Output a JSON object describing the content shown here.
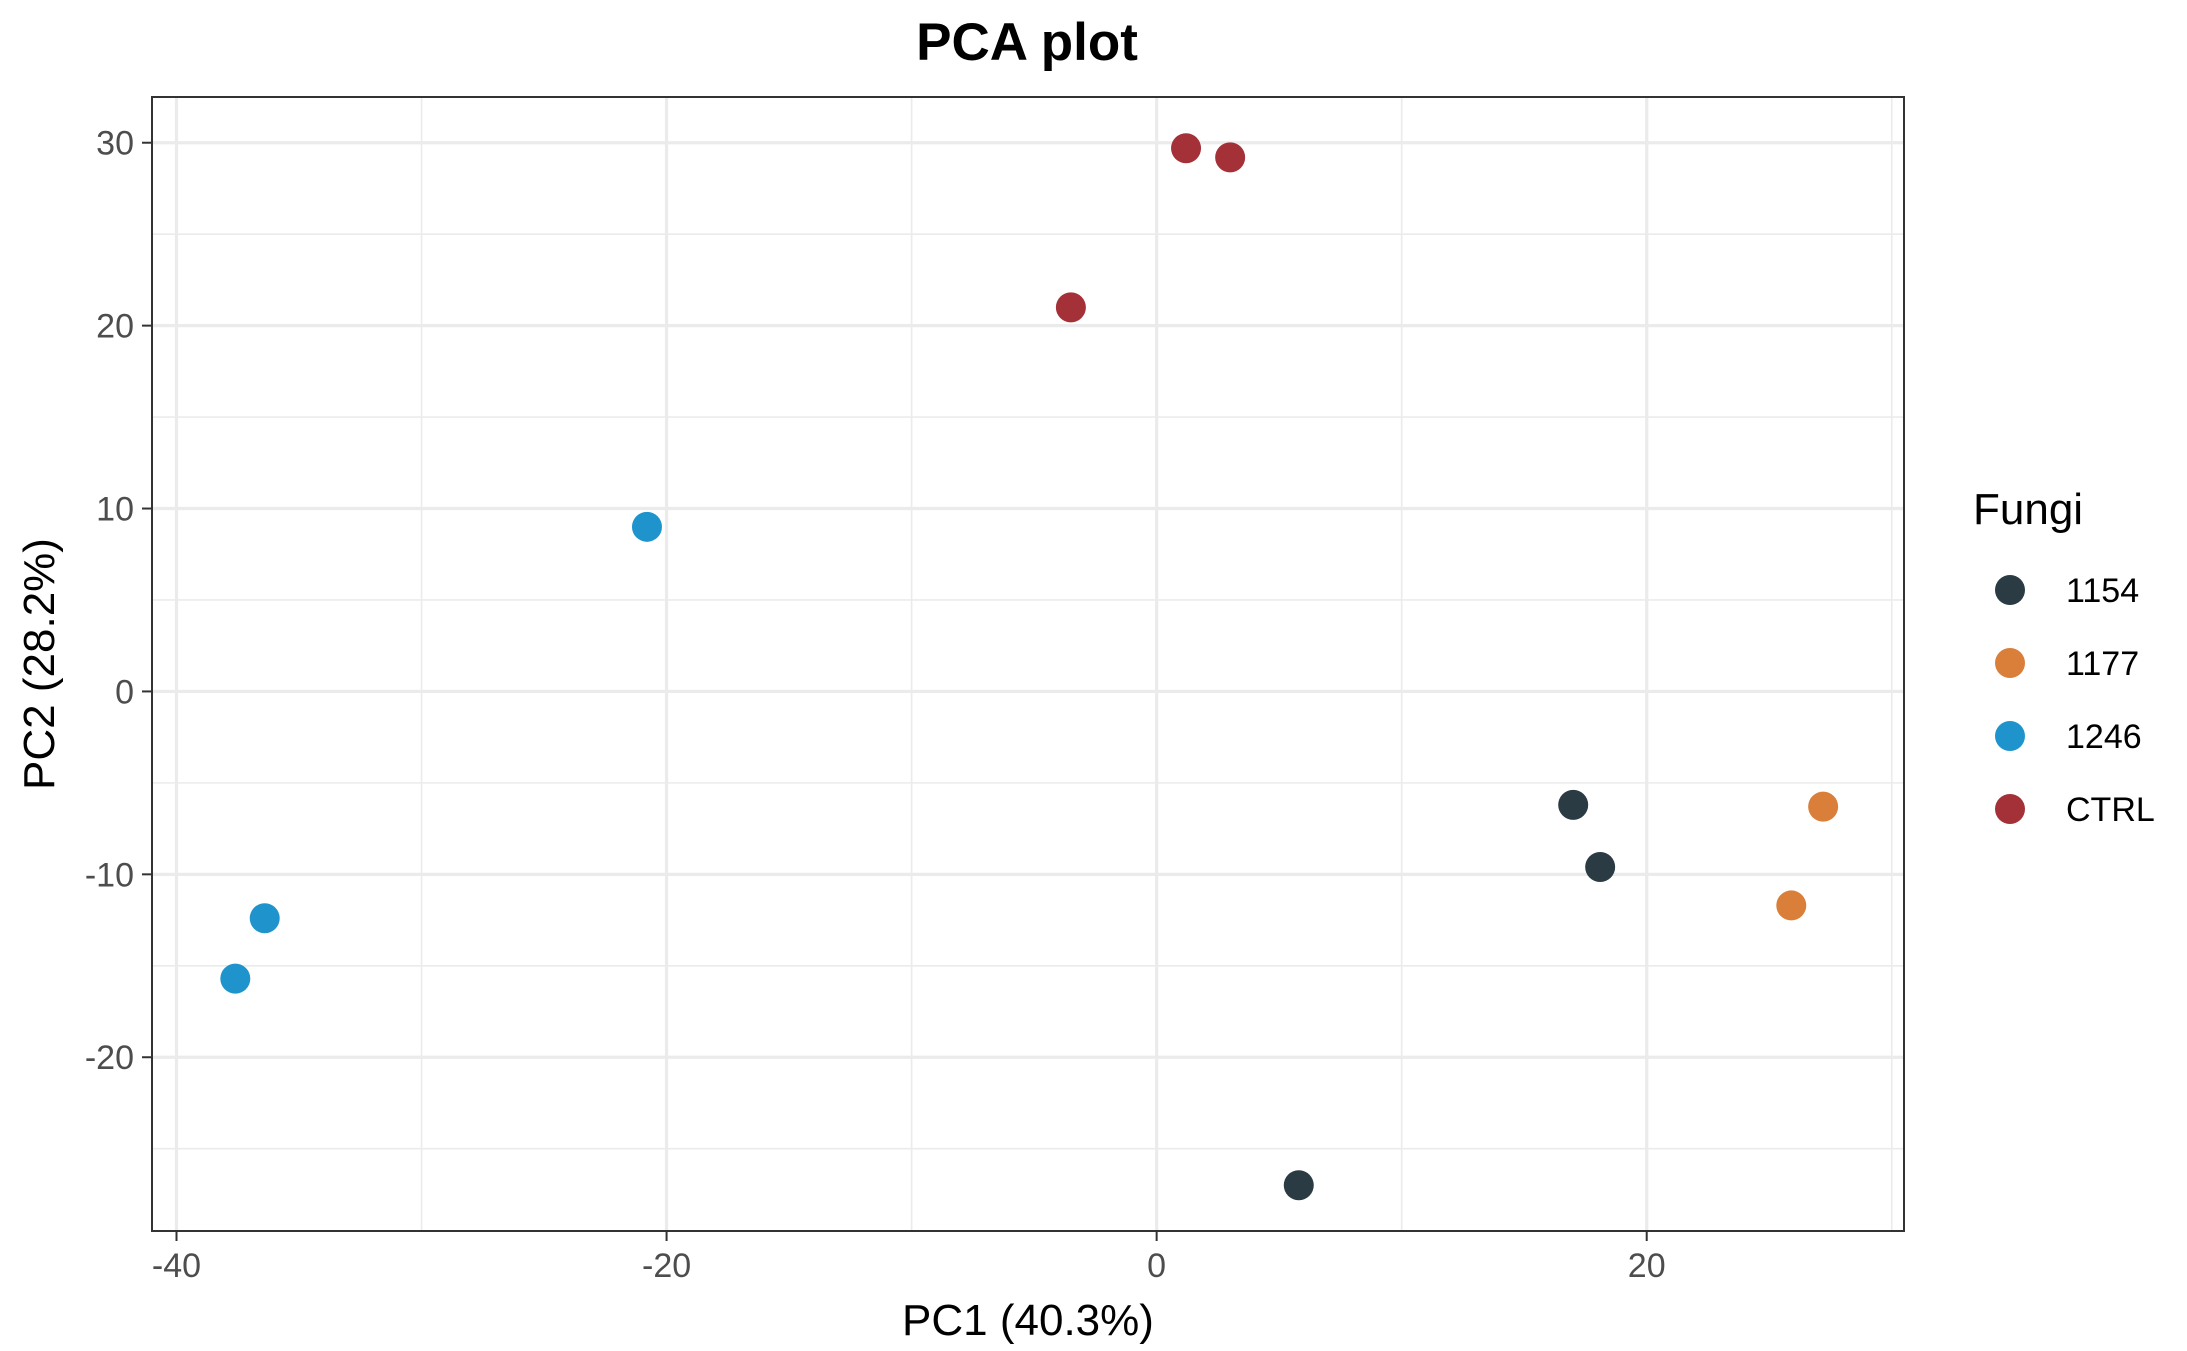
{
  "chart_data": {
    "type": "scatter",
    "title": "PCA plot",
    "xlabel": "PC1 (40.3%)",
    "ylabel": "PC2 (28.2%)",
    "xlim": [
      -41,
      30.5
    ],
    "ylim": [
      -29.5,
      32.5
    ],
    "xticks": [
      -40,
      -20,
      0,
      20
    ],
    "xtick_labels": [
      "-40",
      "-20",
      "0",
      "20"
    ],
    "yticks": [
      -20,
      -10,
      0,
      10,
      20,
      30
    ],
    "ytick_labels": [
      "-20",
      "-10",
      "0",
      "10",
      "20",
      "30"
    ],
    "grid": true,
    "legend": {
      "title": "Fungi",
      "placement": "right"
    },
    "series": [
      {
        "name": "1154",
        "color": "#2a3b43",
        "points": [
          [
            17.0,
            -6.2
          ],
          [
            18.1,
            -9.6
          ],
          [
            5.8,
            -27.0
          ]
        ]
      },
      {
        "name": "1177",
        "color": "#d97f3a",
        "points": [
          [
            27.2,
            -6.3
          ],
          [
            25.9,
            -11.7
          ]
        ]
      },
      {
        "name": "1246",
        "color": "#1f94cc",
        "points": [
          [
            -20.8,
            9.0
          ],
          [
            -36.4,
            -12.4
          ],
          [
            -37.6,
            -15.7
          ]
        ]
      },
      {
        "name": "CTRL",
        "color": "#a33137",
        "points": [
          [
            1.2,
            29.7
          ],
          [
            3.0,
            29.2
          ],
          [
            -3.5,
            21.0
          ]
        ]
      }
    ]
  }
}
